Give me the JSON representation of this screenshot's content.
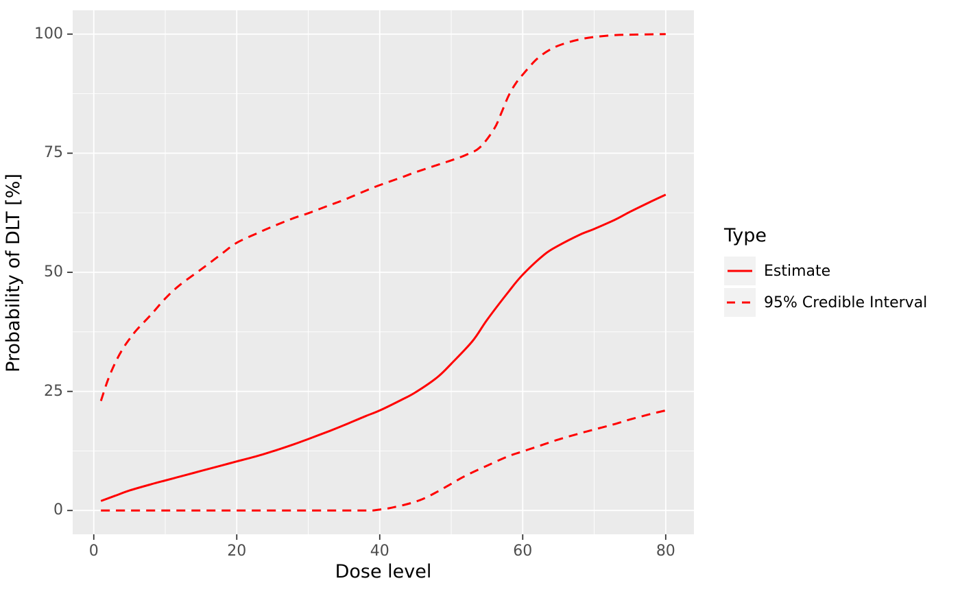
{
  "chart_data": {
    "type": "line",
    "title": "",
    "xlabel": "Dose level",
    "ylabel": "Probability of DLT [%]",
    "xlim": [
      1,
      80
    ],
    "ylim": [
      0,
      100
    ],
    "x_ticks": [
      0,
      20,
      40,
      60,
      80
    ],
    "y_ticks": [
      0,
      25,
      50,
      75,
      100
    ],
    "x_minor_gridlines": [
      10,
      30,
      50,
      70
    ],
    "y_minor_gridlines": [
      12.5,
      37.5,
      62.5,
      87.5
    ],
    "grid": "white major and minor gridlines on grey panel",
    "legend_position": "right",
    "series": [
      {
        "name": "Estimate",
        "linetype": "solid",
        "color": "#FF0000",
        "points": [
          [
            1,
            2
          ],
          [
            3,
            3.1
          ],
          [
            5,
            4.2
          ],
          [
            8,
            5.5
          ],
          [
            10,
            6.3
          ],
          [
            13,
            7.5
          ],
          [
            15,
            8.3
          ],
          [
            18,
            9.5
          ],
          [
            20,
            10.3
          ],
          [
            23,
            11.5
          ],
          [
            25,
            12.4
          ],
          [
            28,
            13.9
          ],
          [
            30,
            15
          ],
          [
            33,
            16.7
          ],
          [
            35,
            17.9
          ],
          [
            38,
            19.8
          ],
          [
            40,
            21
          ],
          [
            43,
            23.2
          ],
          [
            45,
            24.8
          ],
          [
            48,
            27.9
          ],
          [
            50,
            30.8
          ],
          [
            53,
            35.6
          ],
          [
            55,
            40
          ],
          [
            58,
            45.9
          ],
          [
            60,
            49.5
          ],
          [
            63,
            53.7
          ],
          [
            65,
            55.6
          ],
          [
            68,
            57.9
          ],
          [
            70,
            59.1
          ],
          [
            73,
            61.1
          ],
          [
            75,
            62.7
          ],
          [
            78,
            64.9
          ],
          [
            80,
            66.3
          ]
        ]
      },
      {
        "name": "95% Credible Interval (upper)",
        "linetype": "dashed",
        "color": "#FF0000",
        "points": [
          [
            1,
            23
          ],
          [
            2,
            27.5
          ],
          [
            3,
            31
          ],
          [
            4,
            33.8
          ],
          [
            5,
            36
          ],
          [
            6,
            37.9
          ],
          [
            8,
            41.1
          ],
          [
            10,
            44.5
          ],
          [
            12,
            47.3
          ],
          [
            15,
            50.6
          ],
          [
            18,
            54
          ],
          [
            20,
            56.2
          ],
          [
            23,
            58.3
          ],
          [
            25,
            59.6
          ],
          [
            28,
            61.4
          ],
          [
            30,
            62.4
          ],
          [
            33,
            64.1
          ],
          [
            35,
            65.2
          ],
          [
            38,
            67.1
          ],
          [
            40,
            68.3
          ],
          [
            43,
            69.9
          ],
          [
            45,
            71
          ],
          [
            48,
            72.5
          ],
          [
            50,
            73.5
          ],
          [
            52,
            74.6
          ],
          [
            54,
            76.2
          ],
          [
            56,
            80.1
          ],
          [
            57,
            83.4
          ],
          [
            58,
            87
          ],
          [
            59,
            89.6
          ],
          [
            60,
            91.5
          ],
          [
            62,
            94.8
          ],
          [
            64,
            96.9
          ],
          [
            66,
            98.1
          ],
          [
            68,
            98.9
          ],
          [
            70,
            99.4
          ],
          [
            73,
            99.8
          ],
          [
            76,
            99.9
          ],
          [
            80,
            100
          ]
        ]
      },
      {
        "name": "95% Credible Interval (lower)",
        "linetype": "dashed",
        "color": "#FF0000",
        "points": [
          [
            1,
            0
          ],
          [
            5,
            0
          ],
          [
            10,
            0
          ],
          [
            15,
            0
          ],
          [
            20,
            0
          ],
          [
            25,
            0
          ],
          [
            30,
            0
          ],
          [
            35,
            0
          ],
          [
            38,
            0
          ],
          [
            39,
            0
          ],
          [
            40,
            0.2
          ],
          [
            41,
            0.4
          ],
          [
            42,
            0.7
          ],
          [
            44,
            1.4
          ],
          [
            46,
            2.4
          ],
          [
            48,
            3.9
          ],
          [
            50,
            5.6
          ],
          [
            52,
            7.3
          ],
          [
            55,
            9.4
          ],
          [
            58,
            11.4
          ],
          [
            60,
            12.4
          ],
          [
            63,
            13.9
          ],
          [
            65,
            14.9
          ],
          [
            68,
            16.2
          ],
          [
            70,
            17
          ],
          [
            73,
            18.2
          ],
          [
            75,
            19.1
          ],
          [
            78,
            20.3
          ],
          [
            80,
            21
          ]
        ]
      }
    ]
  },
  "legend": {
    "title": "Type",
    "entries": [
      {
        "label": "Estimate",
        "linetype": "solid",
        "color": "#FF0000"
      },
      {
        "label": "95% Credible Interval",
        "linetype": "dashed",
        "color": "#FF0000"
      }
    ]
  },
  "colors": {
    "figure_background": "#FFFFFF",
    "panel_background": "#EBEBEB",
    "grid": "#FFFFFF",
    "tick_mark": "#333333",
    "tick_label": "#4D4D4D",
    "axis_title": "#000000",
    "line": "#FF0000",
    "legend_key_fill": "#F2F2F2"
  }
}
